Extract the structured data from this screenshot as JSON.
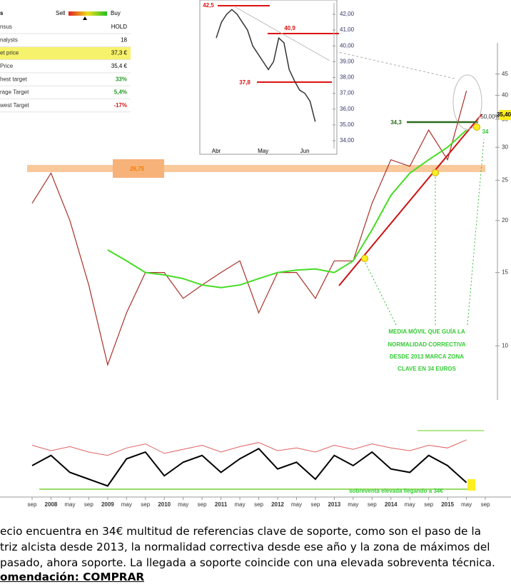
{
  "chart_data": [
    {
      "type": "line",
      "log_scale": true,
      "categories": [
        "sep",
        "2008",
        "may",
        "sep",
        "2009",
        "may",
        "sep",
        "2010",
        "may",
        "sep",
        "2011",
        "may",
        "sep",
        "2012",
        "may",
        "sep",
        "2013",
        "may",
        "sep",
        "2014",
        "may",
        "sep",
        "2015",
        "may",
        "sep"
      ],
      "series": [
        {
          "name": null,
          "color": "#a83228",
          "values": [
            22,
            26,
            20,
            14,
            9,
            12,
            15,
            15,
            13,
            14,
            15,
            16,
            12,
            15,
            15,
            13,
            16,
            16,
            22,
            28,
            27,
            33,
            28,
            41,
            null
          ]
        },
        {
          "name": null,
          "color": "#44dd22",
          "values": [
            null,
            null,
            null,
            null,
            17,
            16,
            15,
            14.8,
            14.5,
            14,
            13.8,
            14,
            14.5,
            15,
            15.2,
            15.3,
            15,
            16,
            19,
            23,
            26,
            28,
            30,
            33,
            null
          ]
        }
      ],
      "ylim": [
        7.5,
        50
      ],
      "yticks": [
        10,
        15,
        20,
        25,
        30,
        35,
        40,
        45
      ],
      "annotations": [
        "26,75",
        "34,3",
        "34",
        "50,00%",
        "35,40",
        "MEDIA MÓVIL QUE GUÍA LA",
        "NORMALIDAD CORRECTIVA",
        "DESDE 2013 MARCA ZONA",
        "CLAVE EN 34 EUROS"
      ]
    },
    {
      "type": "line",
      "categories": [
        "Abr",
        null,
        null,
        null,
        null,
        null,
        null,
        null,
        null,
        "May",
        null,
        null,
        null,
        null,
        null,
        null,
        null,
        "Jun",
        null,
        null
      ],
      "series": [
        {
          "name": null,
          "color": "#333333",
          "values": [
            40.5,
            41.5,
            42,
            42.3,
            42,
            41.5,
            41,
            40,
            39.5,
            39,
            38.5,
            39,
            40.5,
            40.2,
            38.5,
            37.8,
            37.2,
            37,
            36.5,
            35.2
          ]
        }
      ],
      "ylim": [
        33.2,
        42.9
      ],
      "yticks": [
        {
          "value": 34,
          "label": "34,00"
        },
        {
          "value": 35,
          "label": "35,00"
        },
        {
          "value": 36,
          "label": "36,00"
        },
        {
          "value": 37,
          "label": "37,00"
        },
        {
          "value": 38,
          "label": "38,00"
        },
        {
          "value": 39,
          "label": "39,00"
        },
        {
          "value": 40,
          "label": "40,00"
        },
        {
          "value": 41,
          "label": "41,00"
        },
        {
          "value": 42,
          "label": "42,00"
        }
      ],
      "annotations": [
        "42,5",
        "40,9",
        "37,8"
      ]
    },
    {
      "type": "line",
      "series": [
        {
          "name": null,
          "color": "#e06060",
          "values": [
            70,
            62,
            68,
            60,
            55,
            66,
            72,
            58,
            64,
            70,
            60,
            68,
            74,
            62,
            66,
            60,
            70,
            64,
            72,
            66,
            62,
            70,
            66,
            78,
            null
          ]
        },
        {
          "name": null,
          "color": "#000000",
          "values": [
            40,
            55,
            30,
            20,
            10,
            50,
            60,
            25,
            45,
            55,
            30,
            50,
            65,
            35,
            45,
            20,
            55,
            40,
            60,
            35,
            30,
            55,
            40,
            15,
            null
          ]
        }
      ],
      "ylim": [
        0,
        100
      ],
      "annotations": [
        "sobreventa elevada llegando a 34€"
      ]
    }
  ],
  "table": {
    "header": [
      "s",
      "Sell",
      "Buy"
    ],
    "rows": [
      [
        "nsus",
        "HOLD"
      ],
      [
        "nalysts",
        "18"
      ],
      [
        "et price",
        "37,3 €"
      ],
      [
        "Price",
        "35,4 €"
      ],
      [
        "hest target",
        "33%"
      ],
      [
        "rage Target",
        "5,4%"
      ],
      [
        "west Target",
        "-17%"
      ]
    ]
  },
  "text": {
    "lines": [
      "ecio encuentra en 34€ multitud de referencias clave de soporte, como son el paso de la",
      "triz alcista desde 2013, la normalidad correctiva desde ese año y la zona de máximos del",
      "pasado, ahora soporte. La llegada a soporte coincide con una elevada sobreventa técnica."
    ],
    "recommendation": "omendación: COMPRAR"
  }
}
